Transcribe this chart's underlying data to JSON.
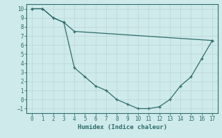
{
  "upper_x": [
    0,
    1,
    2,
    3,
    4,
    17
  ],
  "upper_y": [
    10,
    10,
    9,
    8.5,
    7.5,
    6.5
  ],
  "lower_x": [
    0,
    1,
    2,
    3,
    4,
    5,
    6,
    7,
    8,
    9,
    10,
    11,
    12,
    13,
    14,
    15,
    16,
    17
  ],
  "lower_y": [
    10,
    10,
    9,
    8.5,
    3.5,
    2.5,
    1.5,
    1.0,
    0.0,
    -0.5,
    -1.0,
    -1.0,
    -0.8,
    0.0,
    1.5,
    2.5,
    4.5,
    6.5
  ],
  "color": "#2e6b6b",
  "bg_color": "#ceeaea",
  "grid_major_color": "#c0dada",
  "grid_minor_color": "#d6ecec",
  "xlabel": "Humidex (Indice chaleur)",
  "xlim_min": -0.5,
  "xlim_max": 17.5,
  "ylim_min": -1.5,
  "ylim_max": 10.5,
  "xticks": [
    0,
    1,
    2,
    3,
    4,
    5,
    6,
    7,
    8,
    9,
    10,
    11,
    12,
    13,
    14,
    15,
    16,
    17
  ],
  "yticks": [
    -1,
    0,
    1,
    2,
    3,
    4,
    5,
    6,
    7,
    8,
    9,
    10
  ]
}
